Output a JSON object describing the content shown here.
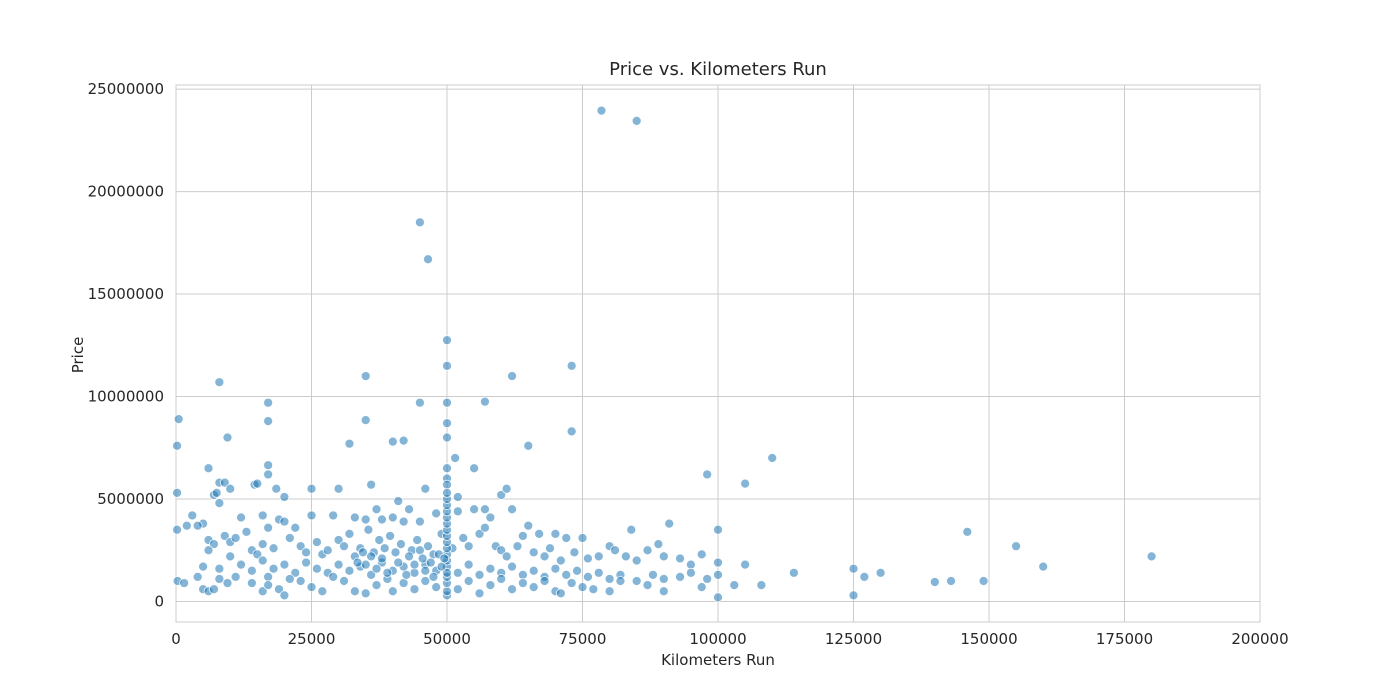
{
  "chart_data": {
    "type": "scatter",
    "title": "Price vs. Kilometers Run",
    "xlabel": "Kilometers Run",
    "ylabel": "Price",
    "xlim": [
      0,
      200000
    ],
    "ylim": [
      -1000000,
      25200000
    ],
    "xticks": [
      "0",
      "25000",
      "50000",
      "75000",
      "100000",
      "125000",
      "150000",
      "175000",
      "200000"
    ],
    "yticks": [
      "0",
      "5000000",
      "10000000",
      "15000000",
      "20000000",
      "25000000"
    ],
    "grid": true,
    "color": "#1f77b4",
    "points": [
      [
        78500,
        23950000
      ],
      [
        85000,
        23450000
      ],
      [
        45000,
        18500000
      ],
      [
        46500,
        16700000
      ],
      [
        50000,
        12750000
      ],
      [
        50000,
        11500000
      ],
      [
        35000,
        11000000
      ],
      [
        62000,
        11000000
      ],
      [
        73000,
        11500000
      ],
      [
        8000,
        10700000
      ],
      [
        17000,
        9700000
      ],
      [
        45000,
        9700000
      ],
      [
        50000,
        9700000
      ],
      [
        57000,
        9750000
      ],
      [
        500,
        8900000
      ],
      [
        17000,
        8800000
      ],
      [
        35000,
        8850000
      ],
      [
        50000,
        8700000
      ],
      [
        73000,
        8300000
      ],
      [
        9500,
        8000000
      ],
      [
        50000,
        8000000
      ],
      [
        40000,
        7800000
      ],
      [
        42000,
        7850000
      ],
      [
        32000,
        7700000
      ],
      [
        65000,
        7600000
      ],
      [
        200,
        7600000
      ],
      [
        110000,
        7000000
      ],
      [
        51500,
        7000000
      ],
      [
        6000,
        6500000
      ],
      [
        17000,
        6650000
      ],
      [
        50000,
        6500000
      ],
      [
        55000,
        6500000
      ],
      [
        17000,
        6200000
      ],
      [
        98000,
        6200000
      ],
      [
        8000,
        5800000
      ],
      [
        9000,
        5800000
      ],
      [
        14500,
        5700000
      ],
      [
        15000,
        5750000
      ],
      [
        36000,
        5700000
      ],
      [
        105000,
        5750000
      ],
      [
        50000,
        6000000
      ],
      [
        50000,
        5700000
      ],
      [
        200,
        5300000
      ],
      [
        7000,
        5200000
      ],
      [
        7500,
        5300000
      ],
      [
        10000,
        5500000
      ],
      [
        18500,
        5500000
      ],
      [
        25000,
        5500000
      ],
      [
        30000,
        5500000
      ],
      [
        46000,
        5500000
      ],
      [
        52000,
        5100000
      ],
      [
        60000,
        5200000
      ],
      [
        61000,
        5500000
      ],
      [
        20000,
        5100000
      ],
      [
        41000,
        4900000
      ],
      [
        8000,
        4800000
      ],
      [
        5000,
        3800000
      ],
      [
        3000,
        4200000
      ],
      [
        12000,
        4100000
      ],
      [
        16000,
        4200000
      ],
      [
        17000,
        3600000
      ],
      [
        19000,
        4000000
      ],
      [
        20000,
        3900000
      ],
      [
        22000,
        3600000
      ],
      [
        25000,
        4200000
      ],
      [
        29000,
        4200000
      ],
      [
        33000,
        4100000
      ],
      [
        35000,
        4000000
      ],
      [
        37000,
        4500000
      ],
      [
        38000,
        4000000
      ],
      [
        40000,
        4100000
      ],
      [
        42000,
        3900000
      ],
      [
        43000,
        4500000
      ],
      [
        45000,
        3900000
      ],
      [
        48000,
        4300000
      ],
      [
        52000,
        4400000
      ],
      [
        55000,
        4500000
      ],
      [
        57000,
        4500000
      ],
      [
        58000,
        4100000
      ],
      [
        62000,
        4500000
      ],
      [
        64000,
        3200000
      ],
      [
        65000,
        3700000
      ],
      [
        67000,
        3300000
      ],
      [
        70000,
        3300000
      ],
      [
        72000,
        3100000
      ],
      [
        75000,
        3100000
      ],
      [
        84000,
        3500000
      ],
      [
        91000,
        3800000
      ],
      [
        100000,
        3500000
      ],
      [
        146000,
        3400000
      ],
      [
        155000,
        2700000
      ],
      [
        200,
        3500000
      ],
      [
        2000,
        3700000
      ],
      [
        4000,
        3700000
      ],
      [
        6000,
        3000000
      ],
      [
        7000,
        2800000
      ],
      [
        9000,
        3200000
      ],
      [
        10000,
        2900000
      ],
      [
        11000,
        3100000
      ],
      [
        13000,
        3400000
      ],
      [
        14000,
        2500000
      ],
      [
        15000,
        2300000
      ],
      [
        16000,
        2800000
      ],
      [
        18000,
        2600000
      ],
      [
        21000,
        3100000
      ],
      [
        23000,
        2700000
      ],
      [
        24000,
        2400000
      ],
      [
        26000,
        2900000
      ],
      [
        27000,
        2300000
      ],
      [
        28000,
        2500000
      ],
      [
        30000,
        3000000
      ],
      [
        31000,
        2700000
      ],
      [
        32000,
        3300000
      ],
      [
        33000,
        2200000
      ],
      [
        34000,
        2600000
      ],
      [
        35500,
        3500000
      ],
      [
        36500,
        2400000
      ],
      [
        37500,
        3000000
      ],
      [
        38500,
        2600000
      ],
      [
        39500,
        3200000
      ],
      [
        41500,
        2800000
      ],
      [
        43500,
        2500000
      ],
      [
        44500,
        3000000
      ],
      [
        46500,
        2700000
      ],
      [
        47500,
        2300000
      ],
      [
        49000,
        3300000
      ],
      [
        51000,
        2600000
      ],
      [
        53000,
        3100000
      ],
      [
        54000,
        2700000
      ],
      [
        56000,
        3300000
      ],
      [
        57000,
        3600000
      ],
      [
        59000,
        2700000
      ],
      [
        60000,
        2500000
      ],
      [
        61000,
        2200000
      ],
      [
        63000,
        2700000
      ],
      [
        66000,
        2400000
      ],
      [
        68000,
        2200000
      ],
      [
        69000,
        2600000
      ],
      [
        71000,
        2000000
      ],
      [
        73500,
        2400000
      ],
      [
        76000,
        2100000
      ],
      [
        78000,
        2200000
      ],
      [
        80000,
        2700000
      ],
      [
        81000,
        2500000
      ],
      [
        83000,
        2200000
      ],
      [
        85000,
        2000000
      ],
      [
        87000,
        2500000
      ],
      [
        89000,
        2800000
      ],
      [
        90000,
        2200000
      ],
      [
        93000,
        2100000
      ],
      [
        95000,
        1800000
      ],
      [
        97000,
        2300000
      ],
      [
        100000,
        1900000
      ],
      [
        105000,
        1800000
      ],
      [
        180000,
        2200000
      ],
      [
        5000,
        1700000
      ],
      [
        6000,
        2500000
      ],
      [
        8000,
        1600000
      ],
      [
        10000,
        2200000
      ],
      [
        12000,
        1800000
      ],
      [
        14000,
        1500000
      ],
      [
        16000,
        2000000
      ],
      [
        17000,
        1200000
      ],
      [
        18000,
        1600000
      ],
      [
        20000,
        1800000
      ],
      [
        22000,
        1400000
      ],
      [
        24000,
        1900000
      ],
      [
        26000,
        1600000
      ],
      [
        28000,
        1400000
      ],
      [
        30000,
        1800000
      ],
      [
        32000,
        1500000
      ],
      [
        34000,
        1700000
      ],
      [
        36000,
        1300000
      ],
      [
        38000,
        1900000
      ],
      [
        40000,
        1500000
      ],
      [
        42000,
        1700000
      ],
      [
        44000,
        1400000
      ],
      [
        46000,
        1800000
      ],
      [
        48000,
        1500000
      ],
      [
        50000,
        1700000
      ],
      [
        52000,
        1400000
      ],
      [
        54000,
        1800000
      ],
      [
        56000,
        1300000
      ],
      [
        58000,
        1600000
      ],
      [
        60000,
        1400000
      ],
      [
        62000,
        1700000
      ],
      [
        64000,
        1300000
      ],
      [
        66000,
        1500000
      ],
      [
        68000,
        1200000
      ],
      [
        70000,
        1600000
      ],
      [
        72000,
        1300000
      ],
      [
        74000,
        1500000
      ],
      [
        76000,
        1200000
      ],
      [
        78000,
        1400000
      ],
      [
        80000,
        1100000
      ],
      [
        82000,
        1300000
      ],
      [
        85000,
        1000000
      ],
      [
        88000,
        1300000
      ],
      [
        90000,
        1100000
      ],
      [
        93000,
        1200000
      ],
      [
        95000,
        1400000
      ],
      [
        98000,
        1100000
      ],
      [
        100000,
        1300000
      ],
      [
        114000,
        1400000
      ],
      [
        125000,
        1600000
      ],
      [
        130000,
        1400000
      ],
      [
        160000,
        1700000
      ],
      [
        143000,
        1000000
      ],
      [
        140000,
        950000
      ],
      [
        149000,
        1000000
      ],
      [
        127000,
        1200000
      ],
      [
        108000,
        800000
      ],
      [
        103000,
        800000
      ],
      [
        300,
        1000000
      ],
      [
        1500,
        900000
      ],
      [
        4000,
        1200000
      ],
      [
        5000,
        600000
      ],
      [
        6000,
        500000
      ],
      [
        7000,
        600000
      ],
      [
        8000,
        1100000
      ],
      [
        9500,
        900000
      ],
      [
        11000,
        1200000
      ],
      [
        14000,
        900000
      ],
      [
        16000,
        500000
      ],
      [
        17000,
        800000
      ],
      [
        19000,
        600000
      ],
      [
        20000,
        300000
      ],
      [
        21000,
        1100000
      ],
      [
        23000,
        1000000
      ],
      [
        25000,
        700000
      ],
      [
        27000,
        500000
      ],
      [
        29000,
        1200000
      ],
      [
        31000,
        1000000
      ],
      [
        33000,
        500000
      ],
      [
        35000,
        400000
      ],
      [
        37000,
        800000
      ],
      [
        39000,
        1100000
      ],
      [
        40000,
        500000
      ],
      [
        42000,
        900000
      ],
      [
        44000,
        600000
      ],
      [
        46000,
        1000000
      ],
      [
        48000,
        700000
      ],
      [
        50000,
        300000
      ],
      [
        50000,
        500000
      ],
      [
        50000,
        900000
      ],
      [
        52000,
        600000
      ],
      [
        54000,
        1000000
      ],
      [
        56000,
        400000
      ],
      [
        58000,
        800000
      ],
      [
        60000,
        1100000
      ],
      [
        62000,
        600000
      ],
      [
        64000,
        900000
      ],
      [
        66000,
        700000
      ],
      [
        68000,
        1000000
      ],
      [
        70000,
        500000
      ],
      [
        71000,
        400000
      ],
      [
        73000,
        900000
      ],
      [
        75000,
        700000
      ],
      [
        77000,
        600000
      ],
      [
        80000,
        500000
      ],
      [
        82000,
        1000000
      ],
      [
        87000,
        800000
      ],
      [
        90000,
        500000
      ],
      [
        97000,
        700000
      ],
      [
        100000,
        200000
      ],
      [
        125000,
        300000
      ],
      [
        50000,
        2000000
      ],
      [
        50000,
        2300000
      ],
      [
        50000,
        2600000
      ],
      [
        50000,
        2900000
      ],
      [
        50000,
        3200000
      ],
      [
        50000,
        3500000
      ],
      [
        50000,
        3800000
      ],
      [
        50000,
        4100000
      ],
      [
        50000,
        4400000
      ],
      [
        50000,
        4700000
      ],
      [
        50000,
        5000000
      ],
      [
        50000,
        5300000
      ],
      [
        50000,
        1200000
      ],
      [
        50000,
        1400000
      ],
      [
        45000,
        2500000
      ],
      [
        45500,
        2100000
      ],
      [
        46000,
        1500000
      ],
      [
        47000,
        1900000
      ],
      [
        47500,
        1200000
      ],
      [
        48500,
        2300000
      ],
      [
        49000,
        1700000
      ],
      [
        49500,
        2100000
      ],
      [
        44000,
        1800000
      ],
      [
        43000,
        2200000
      ],
      [
        42500,
        1300000
      ],
      [
        41000,
        1900000
      ],
      [
        40500,
        2400000
      ],
      [
        39000,
        1400000
      ],
      [
        38000,
        2100000
      ],
      [
        37000,
        1600000
      ],
      [
        36000,
        2200000
      ],
      [
        35000,
        1800000
      ],
      [
        34500,
        2400000
      ],
      [
        33500,
        1900000
      ]
    ]
  }
}
